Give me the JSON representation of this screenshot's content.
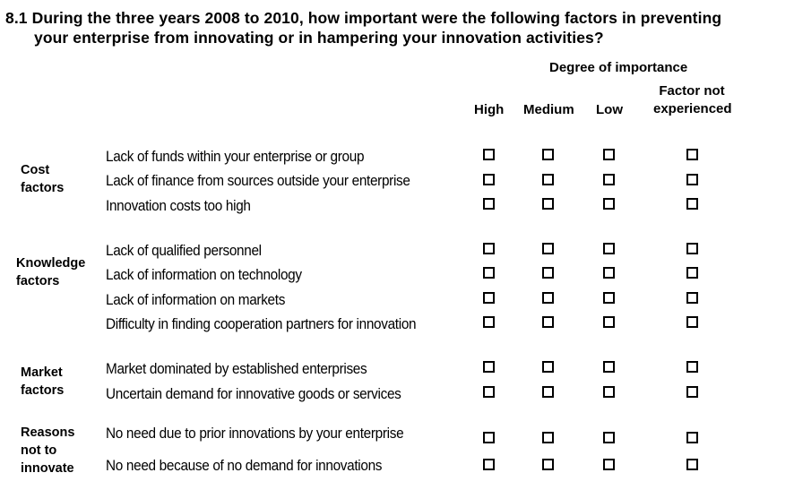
{
  "question": {
    "number": "8.1",
    "line1": "During the three years 2008 to 2010, how important were the following factors in preventing",
    "line2": "your enterprise from innovating or in hampering your innovation activities?"
  },
  "header": {
    "degree_label": "Degree of importance",
    "columns": [
      "High",
      "Medium",
      "Low",
      "Factor not experienced"
    ],
    "fne_line1": "Factor not",
    "fne_line2": "experienced"
  },
  "groups": [
    {
      "label_lines": [
        "Cost",
        "factors"
      ],
      "rows": [
        "Lack of funds within your enterprise or group",
        "Lack of finance from sources outside your enterprise",
        "Innovation costs too high"
      ]
    },
    {
      "label_lines": [
        "Knowledge",
        "factors"
      ],
      "rows": [
        "Lack of qualified personnel",
        "Lack of information on technology",
        "Lack of information on markets",
        "Difficulty in finding cooperation partners for innovation"
      ]
    },
    {
      "label_lines": [
        "Market",
        "factors"
      ],
      "rows": [
        "Market dominated by established enterprises",
        "Uncertain demand for innovative goods or services"
      ]
    },
    {
      "label_lines": [
        "Reasons",
        "not to",
        "innovate"
      ],
      "rows": [
        "No need due to prior innovations by your enterprise",
        "No need because of no demand for innovations"
      ]
    }
  ]
}
